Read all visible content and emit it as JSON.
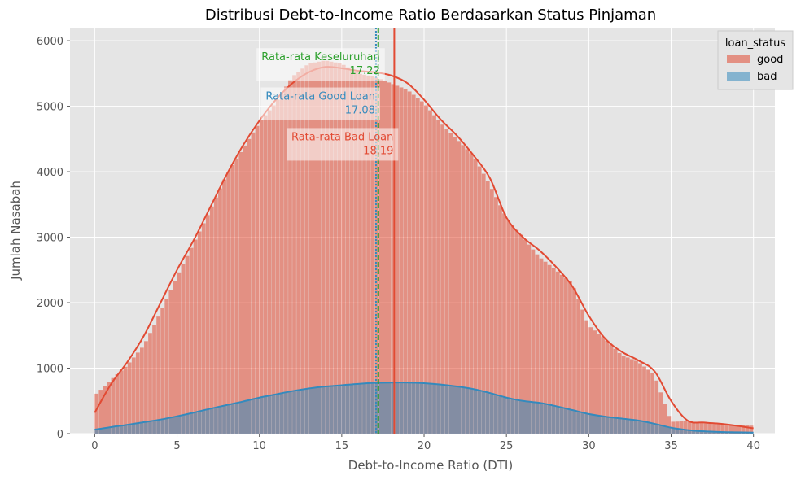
{
  "chart_data": {
    "type": "histogram",
    "title": "Distribusi Debt-to-Income Ratio Berdasarkan Status Pinjaman",
    "xlabel": "Debt-to-Income Ratio (DTI)",
    "ylabel": "Jumlah Nasabah",
    "xlim": [
      -1.5,
      41.3
    ],
    "ylim": [
      0,
      6200
    ],
    "xticks": [
      0,
      5,
      10,
      15,
      20,
      25,
      30,
      35,
      40
    ],
    "yticks": [
      0,
      1000,
      2000,
      3000,
      4000,
      5000,
      6000
    ],
    "grid": true,
    "legend": {
      "title": "loan_status",
      "position": "top-right"
    },
    "series": [
      {
        "name": "good",
        "color": "#E24A33",
        "bin_width": 0.25,
        "bins_start": [
          0.0,
          1.0,
          2.0,
          3.0,
          4.0,
          5.0,
          6.0,
          7.0,
          8.0,
          9.0,
          10.0,
          11.0,
          12.0,
          13.0,
          14.0,
          15.0,
          16.0,
          17.0,
          18.0,
          19.0,
          20.0,
          21.0,
          22.0,
          23.0,
          24.0,
          25.0,
          26.0,
          27.0,
          28.0,
          29.0,
          30.0,
          31.0,
          32.0,
          33.0,
          34.0,
          35.0,
          36.0,
          37.0,
          38.0,
          39.0,
          40.0
        ],
        "counts": [
          580,
          820,
          1050,
          1350,
          1850,
          2400,
          2900,
          3400,
          3950,
          4350,
          4750,
          5050,
          5450,
          5650,
          5700,
          5650,
          5500,
          5450,
          5350,
          5250,
          5050,
          4750,
          4500,
          4250,
          3800,
          3300,
          3000,
          2700,
          2500,
          2300,
          1650,
          1450,
          1200,
          1100,
          900,
          180,
          190,
          160,
          140,
          130,
          120
        ],
        "kde": [
          320,
          760,
          1100,
          1500,
          2000,
          2500,
          2950,
          3450,
          3950,
          4400,
          4780,
          5100,
          5350,
          5520,
          5600,
          5580,
          5540,
          5520,
          5470,
          5350,
          5100,
          4800,
          4550,
          4250,
          3900,
          3300,
          3000,
          2800,
          2550,
          2250,
          1800,
          1450,
          1250,
          1120,
          950,
          500,
          200,
          170,
          150,
          120,
          80
        ]
      },
      {
        "name": "bad",
        "color": "#348ABD",
        "bin_width": 0.25,
        "bins_start": [
          0.0,
          1.0,
          2.0,
          3.0,
          4.0,
          5.0,
          6.0,
          7.0,
          8.0,
          9.0,
          10.0,
          11.0,
          12.0,
          13.0,
          14.0,
          15.0,
          16.0,
          17.0,
          18.0,
          19.0,
          20.0,
          21.0,
          22.0,
          23.0,
          24.0,
          25.0,
          26.0,
          27.0,
          28.0,
          29.0,
          30.0,
          31.0,
          32.0,
          33.0,
          34.0,
          35.0,
          36.0,
          37.0,
          38.0,
          39.0,
          40.0
        ],
        "counts": [
          60,
          100,
          130,
          170,
          210,
          260,
          320,
          380,
          430,
          490,
          550,
          600,
          650,
          690,
          720,
          740,
          760,
          770,
          780,
          780,
          770,
          750,
          720,
          680,
          610,
          540,
          500,
          470,
          420,
          360,
          300,
          260,
          230,
          200,
          150,
          80,
          50,
          30,
          25,
          20,
          15
        ],
        "kde": [
          60,
          100,
          135,
          175,
          215,
          265,
          320,
          380,
          435,
          490,
          550,
          600,
          650,
          690,
          720,
          740,
          760,
          775,
          780,
          780,
          770,
          750,
          720,
          680,
          620,
          550,
          500,
          470,
          420,
          360,
          300,
          260,
          230,
          200,
          150,
          90,
          55,
          35,
          25,
          20,
          15
        ]
      }
    ],
    "reference_lines": [
      {
        "x": 17.22,
        "color": "#2CA02C",
        "style": "dashed"
      },
      {
        "x": 17.08,
        "color": "#348ABD",
        "style": "dotted"
      },
      {
        "x": 18.19,
        "color": "#E24A33",
        "style": "solid"
      }
    ],
    "annotations": [
      {
        "label": "Rata-rata Keseluruhan",
        "value": "17.22",
        "color": "#2CA02C",
        "y": 5700
      },
      {
        "label": "Rata-rata Good Loan",
        "value": "17.08",
        "color": "#348ABD",
        "y": 5100
      },
      {
        "label": "Rata-rata Bad Loan",
        "value": "18.19",
        "color": "#E24A33",
        "y": 4480
      }
    ]
  }
}
